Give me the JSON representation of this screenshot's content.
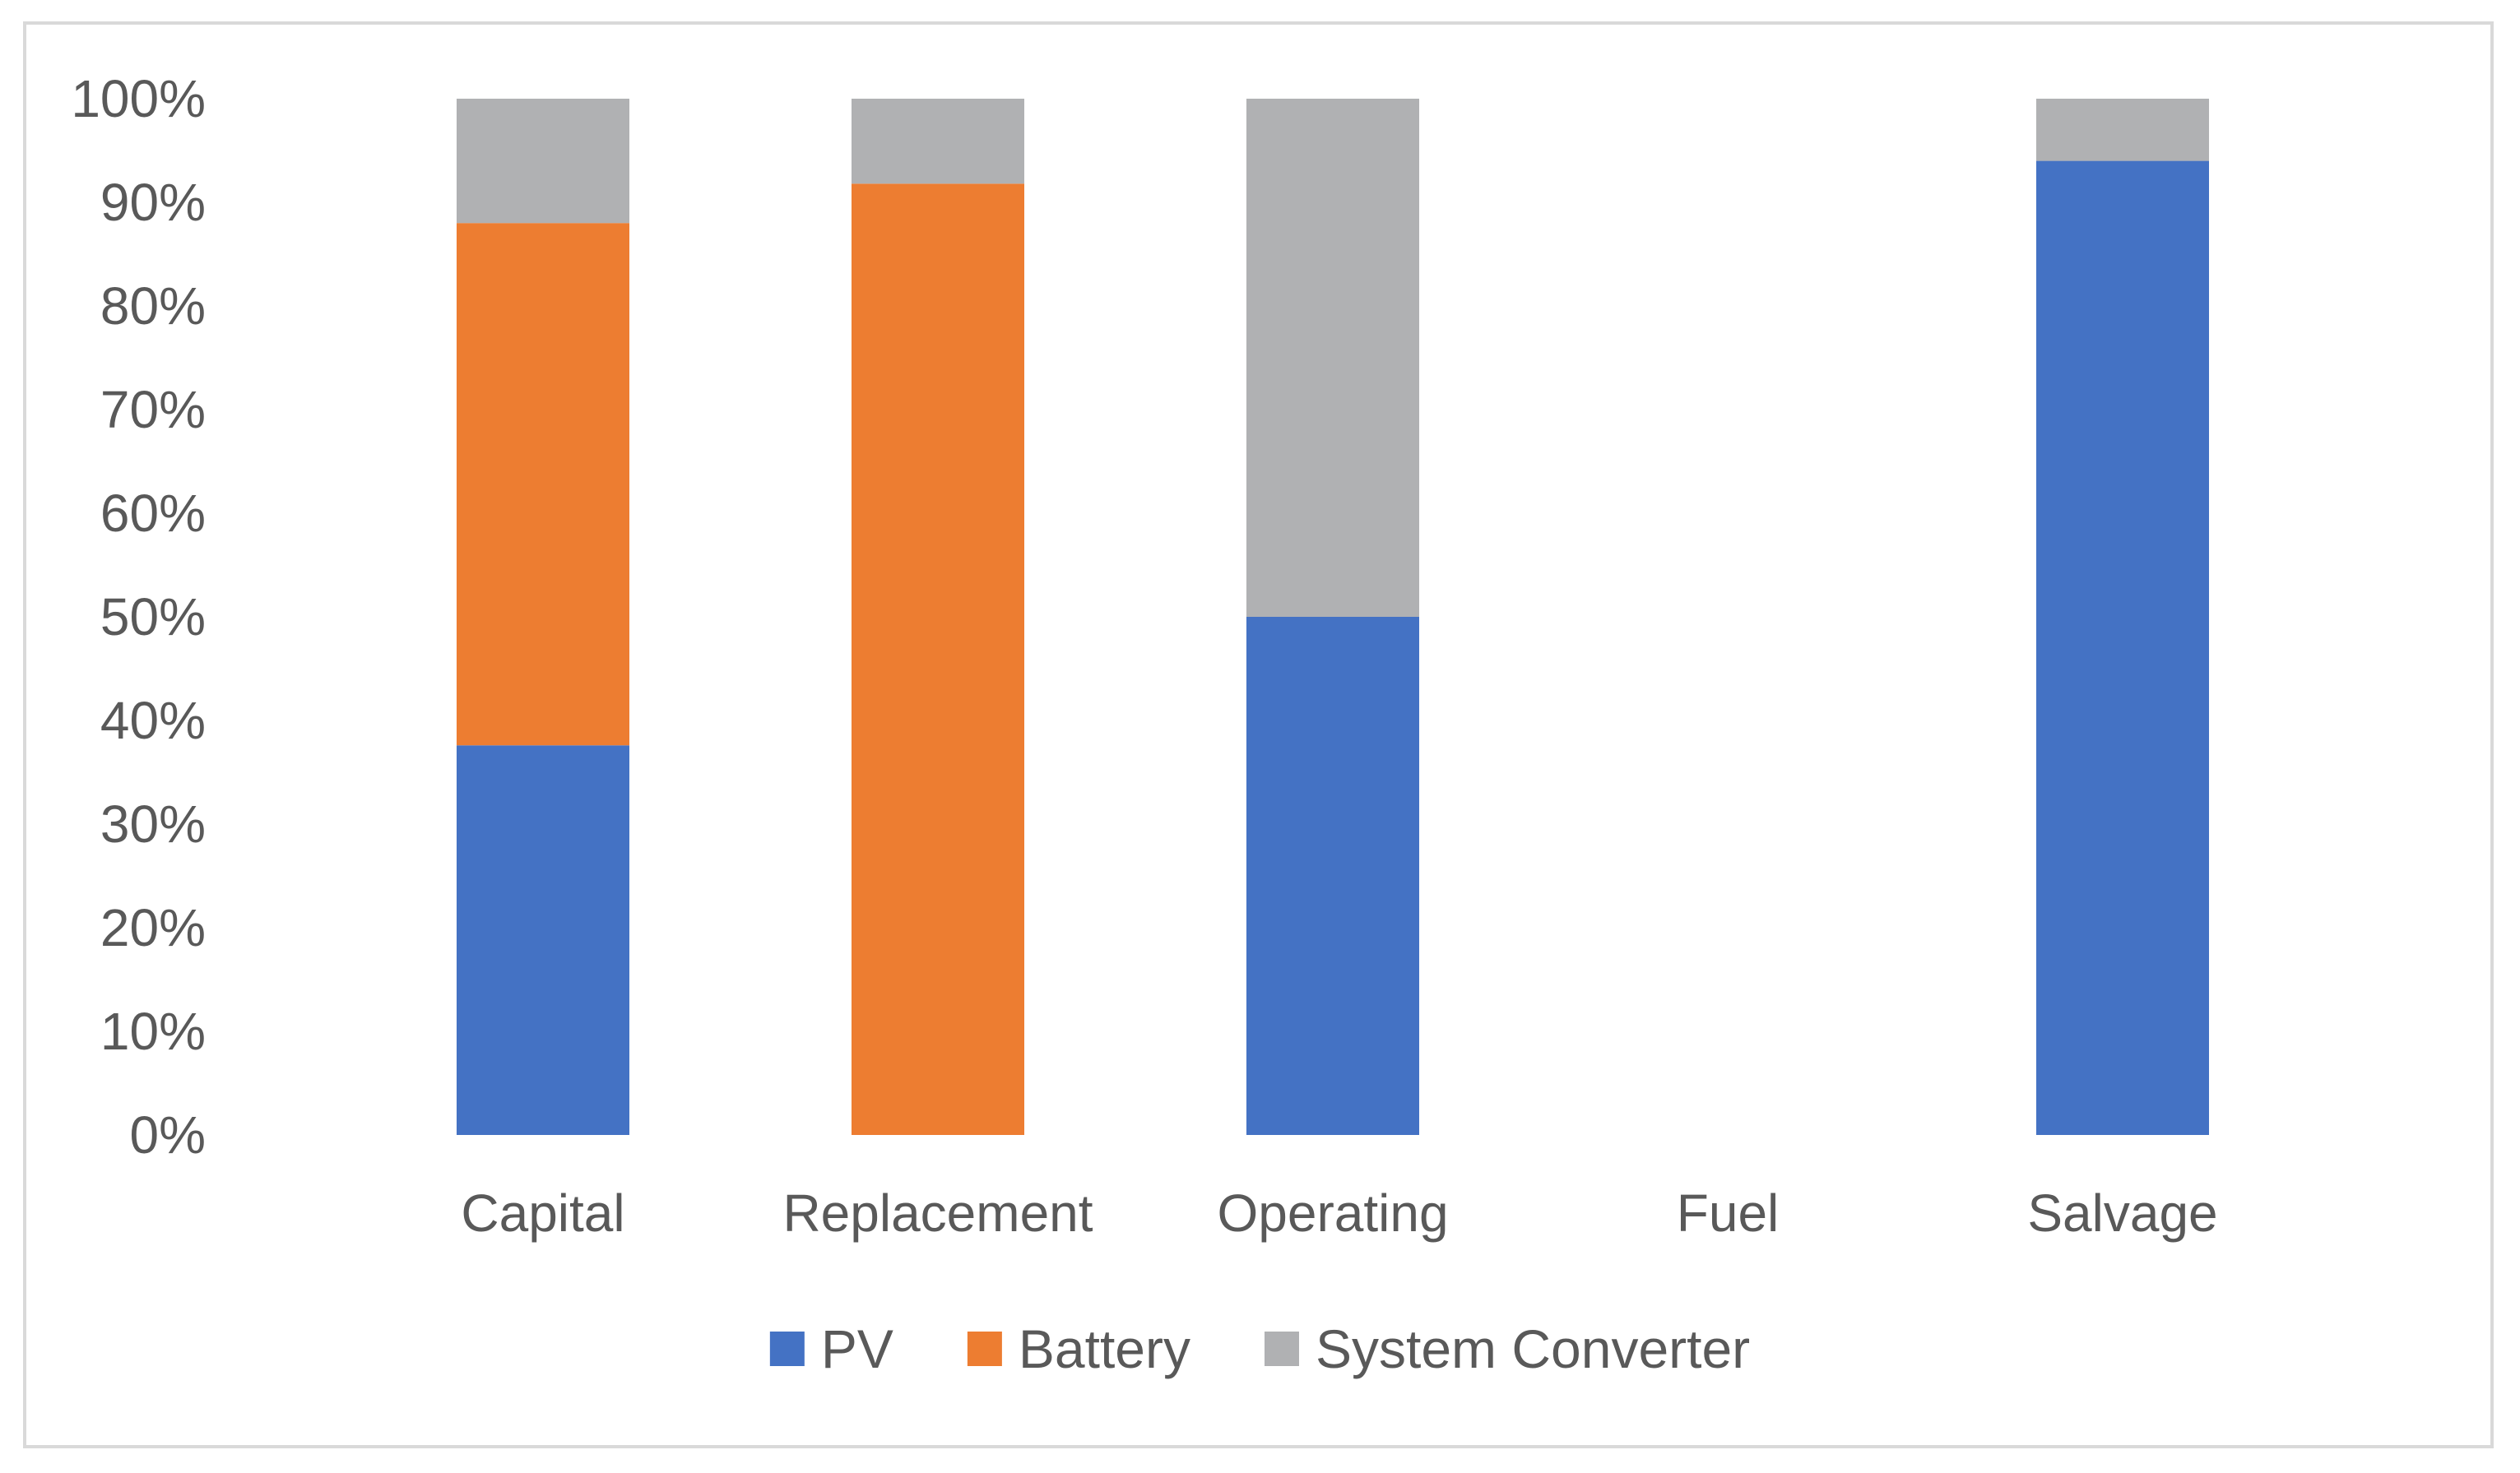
{
  "chart_data": {
    "type": "bar",
    "stacked": "percent",
    "title": "",
    "xlabel": "",
    "ylabel": "",
    "ylim": [
      0,
      100
    ],
    "yticks": [
      "0%",
      "10%",
      "20%",
      "30%",
      "40%",
      "50%",
      "60%",
      "70%",
      "80%",
      "90%",
      "100%"
    ],
    "categories": [
      "Capital",
      "Replacement",
      "Operating",
      "Fuel",
      "Salvage"
    ],
    "series": [
      {
        "name": "PV",
        "color": "#4472C4",
        "values": [
          37.6,
          0,
          50,
          0,
          94
        ]
      },
      {
        "name": "Battery",
        "color": "#ED7D31",
        "values": [
          50.4,
          91.8,
          0,
          0,
          0
        ]
      },
      {
        "name": "System Converter",
        "color": "#B0B1B3",
        "values": [
          12,
          8.2,
          50,
          0,
          6
        ]
      }
    ],
    "grid": false,
    "legend_position": "bottom"
  }
}
